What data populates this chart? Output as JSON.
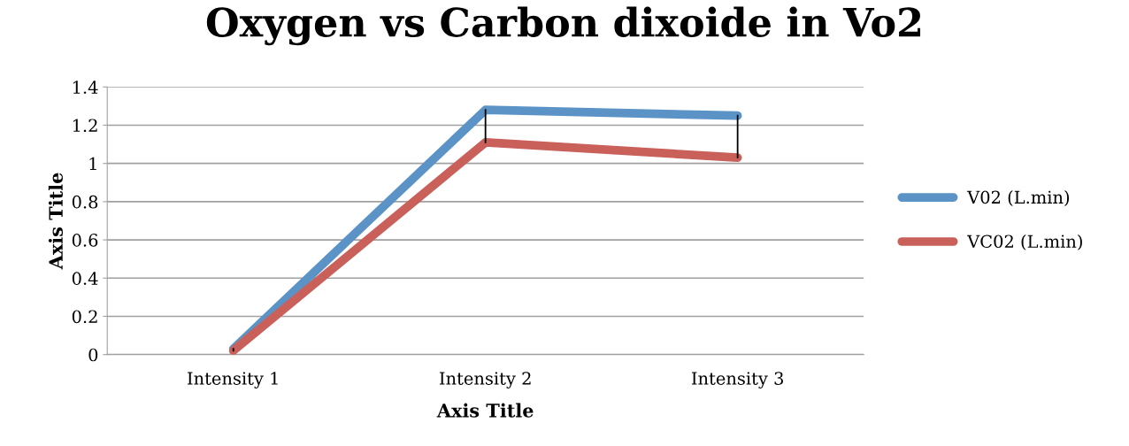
{
  "chart_data": {
    "type": "line",
    "title": "Oxygen vs Carbon dixoide in Vo2",
    "xlabel": "Axis Title",
    "ylabel": "Axis Title",
    "categories": [
      "Intensity 1",
      "Intensity 2",
      "Intensity 3"
    ],
    "series": [
      {
        "name": "V02 (L.min)",
        "color": "#5b93c7",
        "values": [
          0.03,
          1.28,
          1.25
        ]
      },
      {
        "name": "VC02 (L.min)",
        "color": "#c9605a",
        "values": [
          0.02,
          1.11,
          1.03
        ],
        "errors": [
          [
            0.02,
            0.03
          ],
          [
            1.11,
            1.28
          ],
          [
            1.03,
            1.25
          ]
        ]
      }
    ],
    "ylim": [
      0,
      1.4
    ],
    "yticks": [
      0,
      0.2,
      0.4,
      0.6,
      0.8,
      1,
      1.2,
      1.4
    ],
    "grid": "y",
    "legend": "right",
    "marker": "none",
    "line_style": "solid"
  }
}
